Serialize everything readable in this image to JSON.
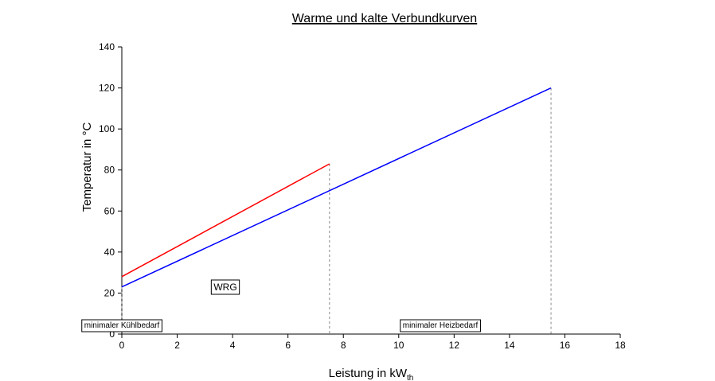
{
  "chart_data": {
    "type": "line",
    "title": "Warme und kalte Verbundkurven",
    "x_label": "Leistung in kW",
    "x_label_subscript": "th",
    "y_label": "Temperatur in °C",
    "xlim": [
      0,
      18
    ],
    "xticks": [
      0,
      2,
      4,
      6,
      8,
      10,
      12,
      14,
      16,
      18
    ],
    "ylim": [
      0,
      140
    ],
    "yticks": [
      0,
      20,
      40,
      60,
      80,
      100,
      120,
      140
    ],
    "series": [
      {
        "color": "#ff0000",
        "x": [
          0,
          7.5
        ],
        "values": [
          28,
          83
        ]
      },
      {
        "color": "#0000ff",
        "x": [
          0,
          15.5
        ],
        "values": [
          23,
          120
        ]
      }
    ],
    "annotations": [
      "WRG",
      "minimaler Kühlbedarf",
      "minimaler Heizbedarf"
    ]
  }
}
